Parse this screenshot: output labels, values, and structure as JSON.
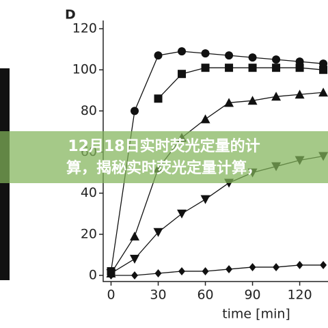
{
  "chart_data": {
    "type": "line",
    "title": "D",
    "x_label": "time [min]",
    "x": [
      0,
      15,
      30,
      45,
      60,
      75,
      90,
      105,
      120,
      135
    ],
    "series": [
      {
        "marker": "circle",
        "color": "#111111",
        "values": [
          2,
          80,
          107,
          109,
          108,
          107,
          106,
          105,
          104,
          103
        ]
      },
      {
        "marker": "square",
        "color": "#111111",
        "values": [
          2,
          null,
          86,
          98,
          101,
          101,
          101,
          101,
          101,
          100
        ]
      },
      {
        "marker": "triangle-up",
        "color": "#111111",
        "values": [
          1,
          19,
          52,
          67,
          76,
          84,
          85,
          87,
          88,
          89
        ]
      },
      {
        "marker": "triangle-down",
        "color": "#111111",
        "values": [
          1,
          8,
          21,
          30,
          37,
          45,
          50,
          53,
          56,
          58
        ]
      },
      {
        "marker": "diamond",
        "color": "#111111",
        "values": [
          0,
          0,
          1,
          2,
          2,
          3,
          4,
          4,
          5,
          5
        ]
      }
    ],
    "xlim": [
      -5,
      138
    ],
    "ylim": [
      -3,
      124
    ],
    "xticks": [
      0,
      30,
      60,
      90,
      120
    ],
    "yticks": [
      0,
      20,
      40,
      60,
      80,
      100,
      120
    ]
  },
  "overlay": {
    "lines": [
      "12月18日实时荧光定量的计",
      "算，揭秘实时荧光定量计算，"
    ]
  }
}
